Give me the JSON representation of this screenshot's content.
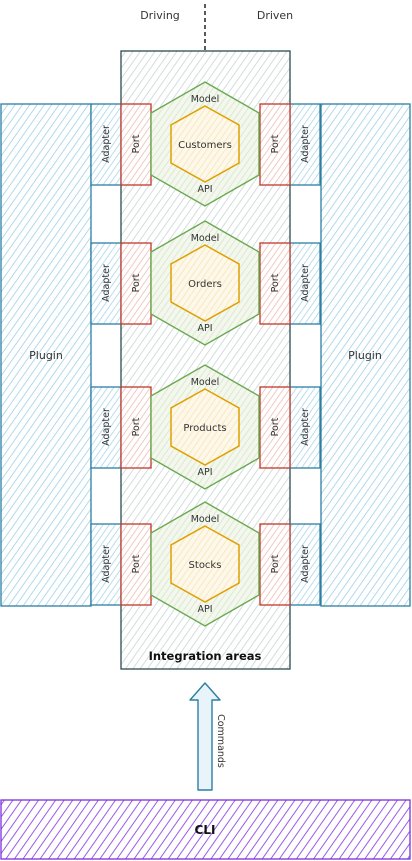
{
  "header": {
    "driving_label": "Driving",
    "driven_label": "Driven"
  },
  "plugins": {
    "left_label": "Plugin",
    "right_label": "Plugin"
  },
  "integration_area": {
    "label": "Integration areas"
  },
  "hexagons": [
    {
      "name": "Customers",
      "model_label": "Model",
      "api_label": "API",
      "port_label": "Port",
      "adapter_label": "Adapter"
    },
    {
      "name": "Orders",
      "model_label": "Model",
      "api_label": "API",
      "port_label": "Port",
      "adapter_label": "Adapter"
    },
    {
      "name": "Products",
      "model_label": "Model",
      "api_label": "API",
      "port_label": "Port",
      "adapter_label": "Adapter"
    },
    {
      "name": "Stocks",
      "model_label": "Model",
      "api_label": "API",
      "port_label": "Port",
      "adapter_label": "Adapter"
    }
  ],
  "arrow": {
    "label": "Commands"
  },
  "cli": {
    "label": "CLI"
  },
  "colors": {
    "plugin_fill": "#cfe8f3",
    "plugin_stroke": "#2b7fa3",
    "integration_fill": "#e3ebeb",
    "integration_stroke": "#2d4a4f",
    "port_fill": "#f3d6d0",
    "port_stroke": "#c0392b",
    "adapter_fill": "#d6eaf5",
    "adapter_stroke": "#2b7fa3",
    "hex_outer_fill": "#e6efdc",
    "hex_outer_stroke": "#6aa84f",
    "hex_inner_fill": "#fbefd2",
    "hex_inner_stroke": "#e0a000",
    "cli_fill": "#c9a9f5",
    "cli_stroke": "#7b2fd9",
    "arrow_fill": "#d6eaf5",
    "arrow_stroke": "#2b7fa3"
  }
}
